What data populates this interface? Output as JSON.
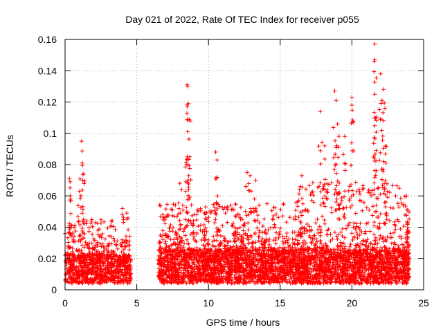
{
  "chart_data": {
    "type": "scatter",
    "title": "Day 021 of 2022, Rate Of TEC Index for receiver p055",
    "xlabel": "GPS time / hours",
    "ylabel": "ROTI / TECUs",
    "xlim": [
      0,
      25
    ],
    "ylim": [
      0,
      0.16
    ],
    "xticks": [
      0,
      5,
      10,
      15,
      20,
      25
    ],
    "xtick_labels": [
      "0",
      "5",
      "10",
      "15",
      "20",
      "25"
    ],
    "yticks": [
      0,
      0.02,
      0.04,
      0.06,
      0.08,
      0.1,
      0.12,
      0.14,
      0.16
    ],
    "ytick_labels": [
      "0",
      "0.02",
      "0.04",
      "0.06",
      "0.08",
      "0.1",
      "0.12",
      "0.14",
      "0.16"
    ],
    "grid": true,
    "marker": "+",
    "color": "#ff0000",
    "series": [
      {
        "name": "ROTI",
        "notable_points": [
          {
            "x": 0.3,
            "y": 0.071
          },
          {
            "x": 0.35,
            "y": 0.069
          },
          {
            "x": 1.15,
            "y": 0.095
          },
          {
            "x": 1.2,
            "y": 0.081
          },
          {
            "x": 1.3,
            "y": 0.074
          },
          {
            "x": 1.0,
            "y": 0.063
          },
          {
            "x": 4.0,
            "y": 0.052
          },
          {
            "x": 4.3,
            "y": 0.049
          },
          {
            "x": 8.5,
            "y": 0.131
          },
          {
            "x": 8.55,
            "y": 0.13
          },
          {
            "x": 8.6,
            "y": 0.119
          },
          {
            "x": 8.55,
            "y": 0.101
          },
          {
            "x": 8.7,
            "y": 0.085
          },
          {
            "x": 8.5,
            "y": 0.08
          },
          {
            "x": 8.0,
            "y": 0.068
          },
          {
            "x": 9.8,
            "y": 0.053
          },
          {
            "x": 10.5,
            "y": 0.088
          },
          {
            "x": 10.6,
            "y": 0.083
          },
          {
            "x": 12.7,
            "y": 0.075
          },
          {
            "x": 12.9,
            "y": 0.073
          },
          {
            "x": 13.3,
            "y": 0.07
          },
          {
            "x": 16.5,
            "y": 0.073
          },
          {
            "x": 16.4,
            "y": 0.066
          },
          {
            "x": 17.8,
            "y": 0.114
          },
          {
            "x": 18.1,
            "y": 0.092
          },
          {
            "x": 18.8,
            "y": 0.127
          },
          {
            "x": 18.9,
            "y": 0.121
          },
          {
            "x": 19.0,
            "y": 0.106
          },
          {
            "x": 19.5,
            "y": 0.098
          },
          {
            "x": 20.0,
            "y": 0.123
          },
          {
            "x": 20.0,
            "y": 0.118
          },
          {
            "x": 21.6,
            "y": 0.157
          },
          {
            "x": 21.6,
            "y": 0.147
          },
          {
            "x": 21.55,
            "y": 0.146
          },
          {
            "x": 21.6,
            "y": 0.125
          },
          {
            "x": 22.2,
            "y": 0.128
          },
          {
            "x": 22.1,
            "y": 0.121
          },
          {
            "x": 22.0,
            "y": 0.138
          },
          {
            "x": 22.3,
            "y": 0.116
          },
          {
            "x": 22.2,
            "y": 0.108
          },
          {
            "x": 23.8,
            "y": 0.06
          },
          {
            "x": 23.9,
            "y": 0.051
          },
          {
            "x": 23.9,
            "y": 0.04
          }
        ],
        "clusters": [
          {
            "x": [
              0.0,
              4.6
            ],
            "y_base": [
              0.004,
              0.022
            ],
            "y_peak": 0.045,
            "density": 900
          },
          {
            "x": [
              6.5,
              24.0
            ],
            "y_base": [
              0.004,
              0.025
            ],
            "y_peak": 0.055,
            "density": 4200
          }
        ],
        "data_gap": [
          4.6,
          6.5
        ]
      }
    ]
  }
}
